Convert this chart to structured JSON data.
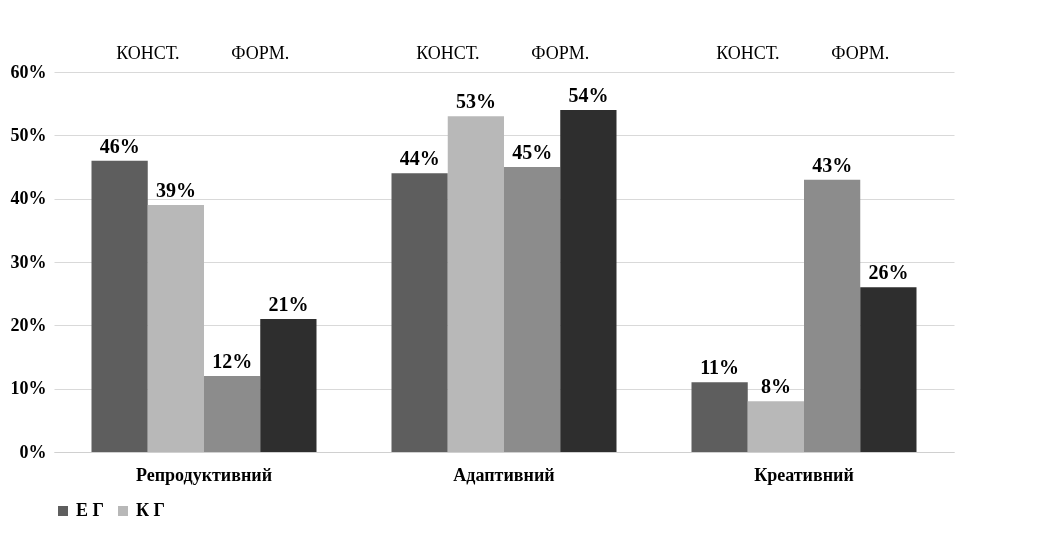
{
  "chart_data": {
    "type": "bar",
    "categories": [
      "Репродуктивний",
      "Адаптивний",
      "Креативний"
    ],
    "series": [
      {
        "name": "Е Г",
        "color": "#5e5e5e",
        "values": [
          46,
          44,
          11
        ],
        "value_labels": [
          "46%",
          "44%",
          "11%"
        ]
      },
      {
        "name": "К Г",
        "color": "#b8b8b8",
        "values": [
          39,
          53,
          8
        ],
        "value_labels": [
          "39%",
          "53%",
          "8%"
        ]
      },
      {
        "color": "#8c8c8c",
        "values": [
          12,
          45,
          43
        ],
        "value_labels": [
          "12%",
          "45%",
          "43%"
        ]
      },
      {
        "color": "#2e2e2e",
        "values": [
          21,
          54,
          26
        ],
        "value_labels": [
          "21%",
          "54%",
          "26%"
        ]
      }
    ],
    "ylim": [
      0,
      60
    ],
    "yticks": [
      {
        "value": 0,
        "label": "0%"
      },
      {
        "value": 10,
        "label": "10%"
      },
      {
        "value": 20,
        "label": "20%"
      },
      {
        "value": 30,
        "label": "30%"
      },
      {
        "value": 40,
        "label": "40%"
      },
      {
        "value": 50,
        "label": "50%"
      },
      {
        "value": 60,
        "label": "60%"
      }
    ],
    "annotations": [
      "КОНСТ.",
      "ФОРМ.",
      "КОНСТ.",
      "ФОРМ.",
      "КОНСТ.",
      "ФОРМ."
    ],
    "grid": "y",
    "legend": "bottom"
  }
}
